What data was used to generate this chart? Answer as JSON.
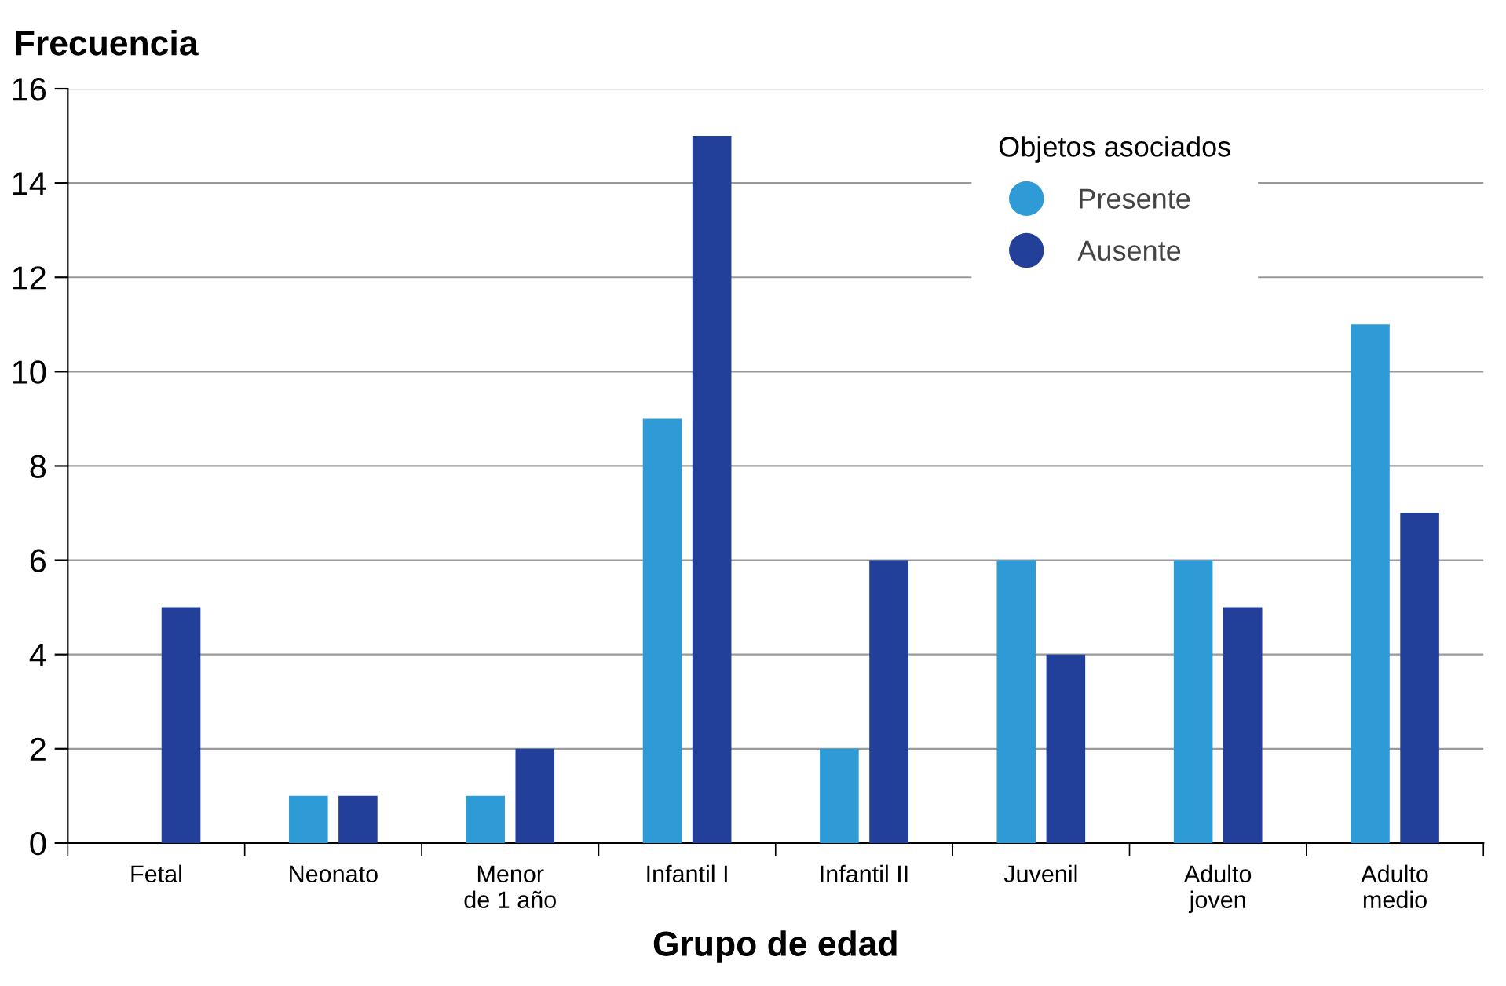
{
  "chart_data": {
    "type": "bar",
    "xlabel": "Grupo de edad",
    "ylabel": "Frecuencia",
    "legend_title": "Objetos asociados",
    "categories": [
      "Fetal",
      "Neonato",
      "Menor\nde 1 año",
      "Infantil I",
      "Infantil II",
      "Juvenil",
      "Adulto\njoven",
      "Adulto\nmedio"
    ],
    "series": [
      {
        "name": "Presente",
        "color": "#2e9bd6",
        "values": [
          0,
          1,
          1,
          9,
          2,
          6,
          6,
          11
        ]
      },
      {
        "name": "Ausente",
        "color": "#223f99",
        "values": [
          5,
          1,
          2,
          15,
          6,
          4,
          5,
          7
        ]
      }
    ],
    "ylim": [
      0,
      16
    ],
    "yticks": [
      0,
      2,
      4,
      6,
      8,
      10,
      12,
      14,
      16
    ],
    "grid": "y",
    "legend": "top right",
    "marker": "circle"
  }
}
